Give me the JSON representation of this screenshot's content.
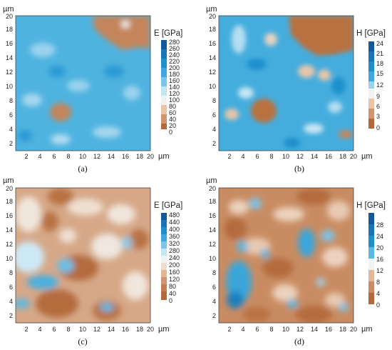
{
  "figure": {
    "axis_unit": "µm",
    "panels": [
      "a",
      "b",
      "c",
      "d"
    ]
  },
  "chart_data": [
    {
      "panel": "a",
      "type": "heatmap",
      "caption": "(a)",
      "quantity": "E [GPa]",
      "x_unit": "µm",
      "y_unit": "µm",
      "xlim": [
        1,
        20
      ],
      "ylim": [
        1,
        20
      ],
      "x_ticks": [
        "2",
        "4",
        "6",
        "8",
        "10",
        "12",
        "14",
        "16",
        "18",
        "20"
      ],
      "y_ticks": [
        "2",
        "4",
        "6",
        "8",
        "10",
        "12",
        "14",
        "16",
        "18",
        "20"
      ],
      "colorbar_ticks": [
        "280",
        "260",
        "240",
        "220",
        "200",
        "180",
        "160",
        "140",
        "120",
        "100",
        "80",
        "60",
        "40",
        "20",
        "0"
      ],
      "colorbar_range": [
        0,
        280
      ],
      "colors": {
        "low": "#b06a3b",
        "mid": "#f2f2f2",
        "high": "#1f8fcc",
        "top": "#14589a"
      }
    },
    {
      "panel": "b",
      "type": "heatmap",
      "caption": "(b)",
      "quantity": "H [GPa]",
      "x_unit": "µm",
      "y_unit": "µm",
      "xlim": [
        1,
        20
      ],
      "ylim": [
        1,
        20
      ],
      "x_ticks": [
        "2",
        "4",
        "6",
        "8",
        "10",
        "12",
        "14",
        "16",
        "18",
        "20"
      ],
      "y_ticks": [
        "2",
        "4",
        "6",
        "8",
        "10",
        "12",
        "14",
        "16",
        "18",
        "20"
      ],
      "colorbar_ticks": [
        "24",
        "21",
        "18",
        "15",
        "12",
        "9",
        "6",
        "3",
        "0"
      ],
      "colorbar_range": [
        0,
        24
      ],
      "colors": {
        "low": "#b06a3b",
        "mid": "#f2f2f2",
        "high": "#1f8fcc",
        "top": "#14589a"
      }
    },
    {
      "panel": "c",
      "type": "heatmap",
      "caption": "(c)",
      "quantity": "E [GPa]",
      "x_unit": "µm",
      "y_unit": "µm",
      "xlim": [
        1,
        20
      ],
      "ylim": [
        1,
        20
      ],
      "x_ticks": [
        "2",
        "4",
        "6",
        "8",
        "10",
        "12",
        "14",
        "16",
        "18",
        "20"
      ],
      "y_ticks": [
        "2",
        "4",
        "6",
        "8",
        "10",
        "12",
        "14",
        "16",
        "18",
        "20"
      ],
      "colorbar_ticks": [
        "480",
        "440",
        "400",
        "360",
        "320",
        "280",
        "240",
        "200",
        "160",
        "120",
        "80",
        "40",
        "0"
      ],
      "colorbar_range": [
        0,
        480
      ],
      "colors": {
        "low": "#b06a3b",
        "mid": "#f2f2f2",
        "high": "#1f8fcc",
        "top": "#14589a"
      }
    },
    {
      "panel": "d",
      "type": "heatmap",
      "caption": "(d)",
      "quantity": "H [GPa]",
      "x_unit": "µm",
      "y_unit": "µm",
      "xlim": [
        1,
        20
      ],
      "ylim": [
        1,
        20
      ],
      "x_ticks": [
        "2",
        "4",
        "6",
        "8",
        "10",
        "12",
        "14",
        "16",
        "18",
        "20"
      ],
      "y_ticks": [
        "2",
        "4",
        "6",
        "8",
        "10",
        "12",
        "14",
        "16",
        "18",
        "20"
      ],
      "colorbar_ticks": [
        "28",
        "24",
        "20",
        "16",
        "12",
        "8",
        "4",
        "0"
      ],
      "colorbar_range": [
        0,
        28
      ],
      "colors": {
        "low": "#b06a3b",
        "mid": "#f2f2f2",
        "high": "#1f8fcc",
        "top": "#14589a"
      }
    }
  ]
}
